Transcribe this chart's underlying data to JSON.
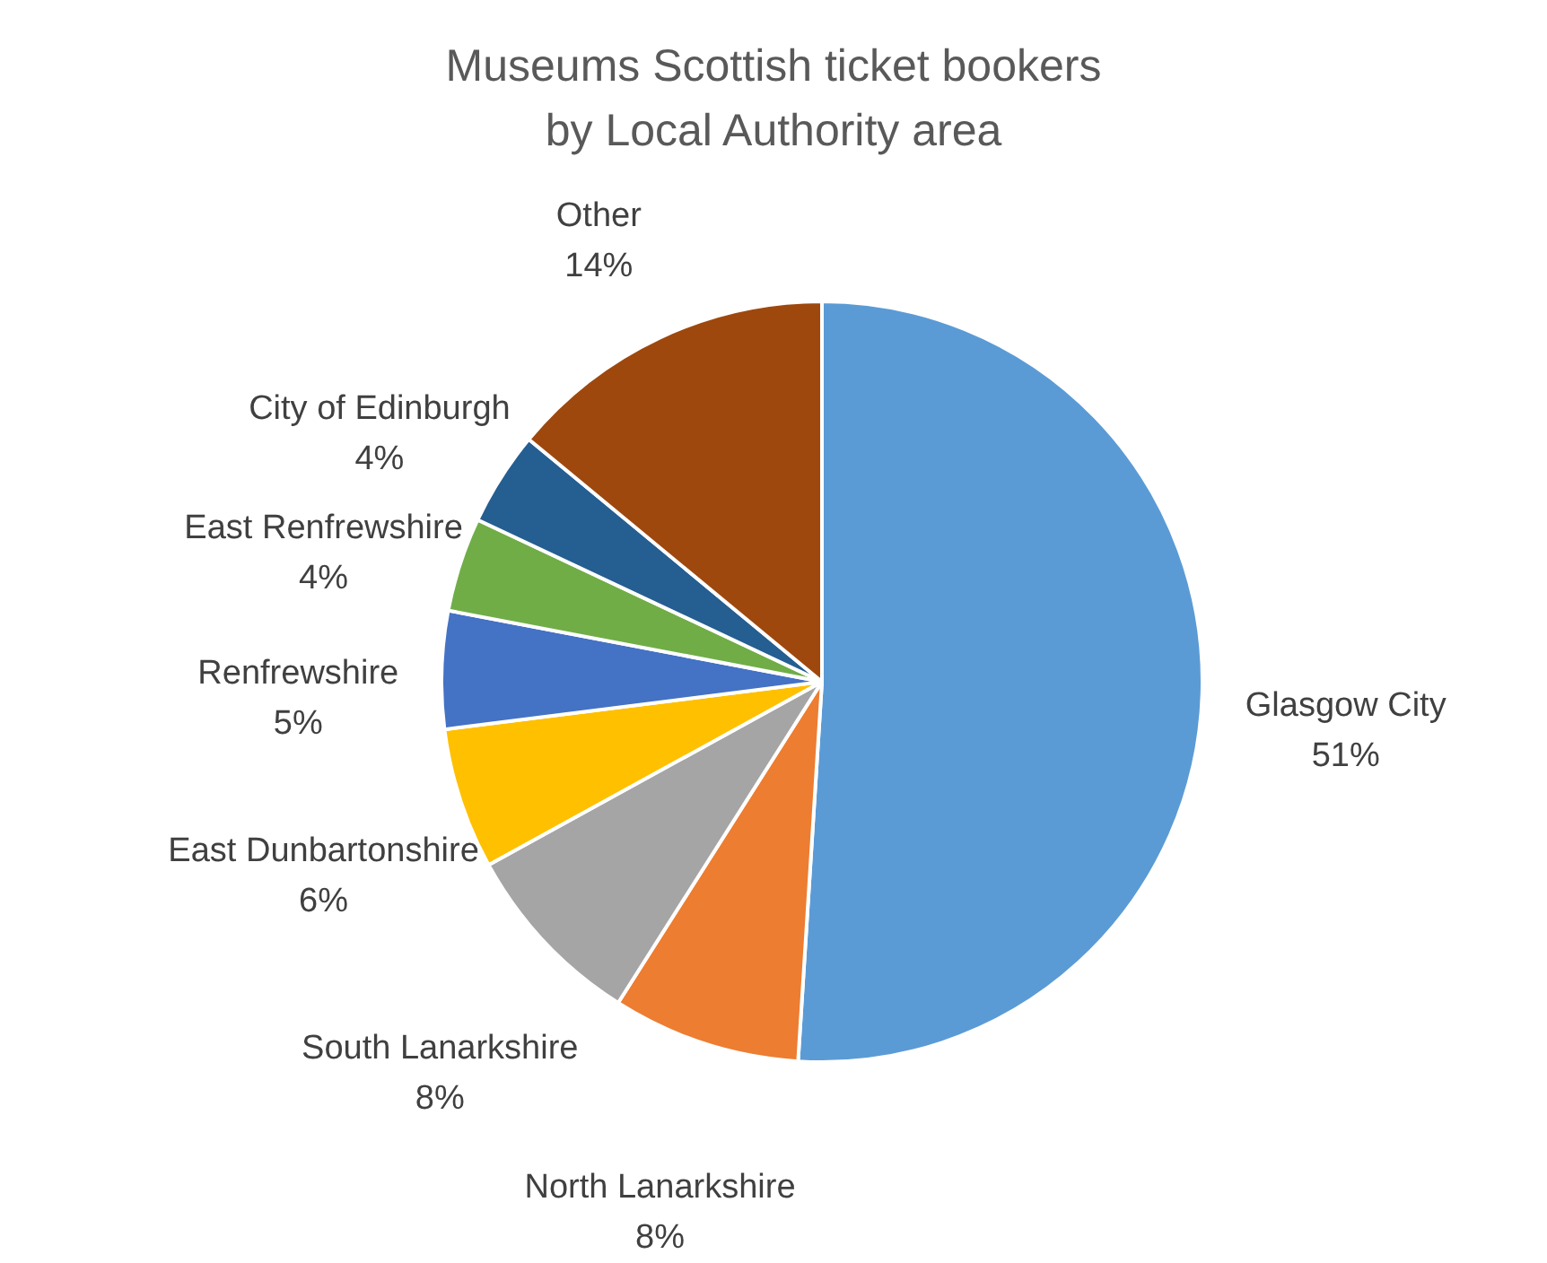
{
  "chart_data": {
    "type": "pie",
    "title": "Museums Scottish ticket bookers\nby Local Authority area",
    "categories": [
      "Glasgow City",
      "North Lanarkshire",
      "South Lanarkshire",
      "East Dunbartonshire",
      "Renfrewshire",
      "East Renfrewshire",
      "City of Edinburgh",
      "Other"
    ],
    "values": [
      51,
      8,
      8,
      6,
      5,
      4,
      4,
      14
    ],
    "value_labels": [
      "51%",
      "8%",
      "8%",
      "6%",
      "5%",
      "4%",
      "4%",
      "14%"
    ],
    "colors": [
      "#5b9bd5",
      "#ed7d31",
      "#a5a5a5",
      "#ffc000",
      "#4472c4",
      "#70ad47",
      "#255e91",
      "#9e480e"
    ],
    "legend": false
  }
}
